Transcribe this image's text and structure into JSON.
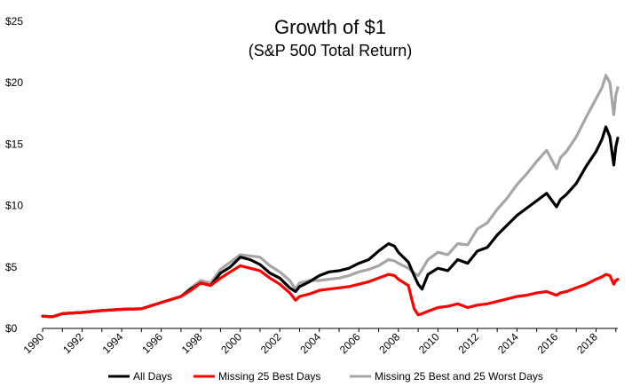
{
  "chart_data": {
    "type": "line",
    "title": "Growth of $1",
    "subtitle": "(S&P 500 Total Return)",
    "xlabel": "",
    "ylabel": "",
    "xlim": [
      1990,
      2019.1
    ],
    "ylim": [
      0,
      25
    ],
    "x_ticks": [
      "1990",
      "1992",
      "1994",
      "1996",
      "1998",
      "2000",
      "2002",
      "2004",
      "2006",
      "2008",
      "2010",
      "2012",
      "2014",
      "2016",
      "2018"
    ],
    "y_ticks": [
      "$0",
      "$5",
      "$10",
      "$15",
      "$20",
      "$25"
    ],
    "grid": false,
    "legend_position": "bottom",
    "series": [
      {
        "name": "All Days",
        "color": "#000000",
        "x": [
          1990,
          1990.5,
          1991,
          1992,
          1993,
          1994,
          1995,
          1996,
          1997,
          1997.5,
          1998,
          1998.5,
          1999,
          1999.5,
          2000,
          2000.5,
          2001,
          2001.5,
          2002,
          2002.5,
          2002.8,
          2003,
          2003.5,
          2004,
          2004.5,
          2005,
          2005.5,
          2006,
          2006.5,
          2007,
          2007.5,
          2007.8,
          2008,
          2008.5,
          2008.8,
          2009,
          2009.2,
          2009.5,
          2010,
          2010.5,
          2011,
          2011.5,
          2012,
          2012.5,
          2013,
          2013.5,
          2014,
          2014.5,
          2015,
          2015.5,
          2016,
          2016.2,
          2016.5,
          2017,
          2017.5,
          2018,
          2018.3,
          2018.5,
          2018.7,
          2018.9,
          2019,
          2019.1
        ],
        "values": [
          1.0,
          0.95,
          1.2,
          1.3,
          1.45,
          1.55,
          1.6,
          2.1,
          2.6,
          3.2,
          3.7,
          3.5,
          4.5,
          5.0,
          5.8,
          5.6,
          5.2,
          4.5,
          4.1,
          3.3,
          3.0,
          3.4,
          3.8,
          4.3,
          4.6,
          4.7,
          4.9,
          5.3,
          5.6,
          6.3,
          6.9,
          6.7,
          6.2,
          5.4,
          4.3,
          3.6,
          3.2,
          4.4,
          4.9,
          4.7,
          5.6,
          5.3,
          6.3,
          6.6,
          7.6,
          8.4,
          9.2,
          9.8,
          10.4,
          11.0,
          9.9,
          10.5,
          10.9,
          11.8,
          13.2,
          14.4,
          15.4,
          16.4,
          15.6,
          13.3,
          14.8,
          15.5
        ]
      },
      {
        "name": "Missing 25 Best Days",
        "color": "#ff0000",
        "x": [
          1990,
          1990.5,
          1991,
          1992,
          1993,
          1994,
          1995,
          1996,
          1997,
          1997.5,
          1998,
          1998.5,
          1999,
          1999.5,
          2000,
          2000.5,
          2001,
          2001.5,
          2002,
          2002.5,
          2002.8,
          2003,
          2003.5,
          2004,
          2004.5,
          2005,
          2005.5,
          2006,
          2006.5,
          2007,
          2007.5,
          2007.8,
          2008,
          2008.5,
          2008.8,
          2009,
          2009.2,
          2009.5,
          2010,
          2010.5,
          2011,
          2011.5,
          2012,
          2012.5,
          2013,
          2013.5,
          2014,
          2014.5,
          2015,
          2015.5,
          2016,
          2016.2,
          2016.5,
          2017,
          2017.5,
          2018,
          2018.3,
          2018.5,
          2018.7,
          2018.9,
          2019,
          2019.1
        ],
        "values": [
          1.0,
          0.95,
          1.2,
          1.3,
          1.45,
          1.55,
          1.6,
          2.1,
          2.6,
          3.1,
          3.7,
          3.5,
          4.1,
          4.6,
          5.1,
          4.9,
          4.7,
          4.1,
          3.6,
          2.9,
          2.3,
          2.6,
          2.8,
          3.1,
          3.2,
          3.3,
          3.4,
          3.6,
          3.8,
          4.1,
          4.4,
          4.3,
          4.0,
          3.5,
          1.6,
          1.1,
          1.2,
          1.4,
          1.7,
          1.8,
          2.0,
          1.7,
          1.9,
          2.0,
          2.2,
          2.4,
          2.6,
          2.7,
          2.9,
          3.0,
          2.7,
          2.9,
          3.0,
          3.3,
          3.6,
          4.0,
          4.2,
          4.4,
          4.3,
          3.6,
          3.9,
          4.0
        ]
      },
      {
        "name": "Missing 25 Best and 25 Worst Days",
        "color": "#a6a6a6",
        "x": [
          1990,
          1990.5,
          1991,
          1992,
          1993,
          1994,
          1995,
          1996,
          1997,
          1997.5,
          1998,
          1998.5,
          1999,
          1999.5,
          2000,
          2000.5,
          2001,
          2001.5,
          2002,
          2002.5,
          2002.8,
          2003,
          2003.5,
          2004,
          2004.5,
          2005,
          2005.5,
          2006,
          2006.5,
          2007,
          2007.5,
          2007.8,
          2008,
          2008.5,
          2008.8,
          2009,
          2009.2,
          2009.5,
          2010,
          2010.5,
          2011,
          2011.5,
          2012,
          2012.5,
          2013,
          2013.5,
          2014,
          2014.5,
          2015,
          2015.5,
          2016,
          2016.2,
          2016.5,
          2017,
          2017.5,
          2018,
          2018.3,
          2018.5,
          2018.7,
          2018.9,
          2019,
          2019.1
        ],
        "values": [
          1.0,
          0.95,
          1.2,
          1.3,
          1.45,
          1.55,
          1.6,
          2.1,
          2.6,
          3.3,
          3.9,
          3.7,
          4.8,
          5.4,
          6.0,
          5.9,
          5.8,
          5.1,
          4.6,
          3.9,
          3.2,
          3.7,
          3.9,
          3.9,
          4.0,
          4.1,
          4.3,
          4.6,
          4.8,
          5.1,
          5.6,
          5.5,
          5.3,
          4.9,
          4.5,
          4.3,
          4.8,
          5.6,
          6.2,
          6.0,
          6.9,
          6.8,
          8.1,
          8.6,
          9.7,
          10.6,
          11.7,
          12.6,
          13.6,
          14.5,
          13.0,
          13.9,
          14.4,
          15.6,
          17.2,
          18.7,
          19.6,
          20.6,
          20.0,
          17.4,
          19.0,
          19.6
        ]
      }
    ]
  }
}
